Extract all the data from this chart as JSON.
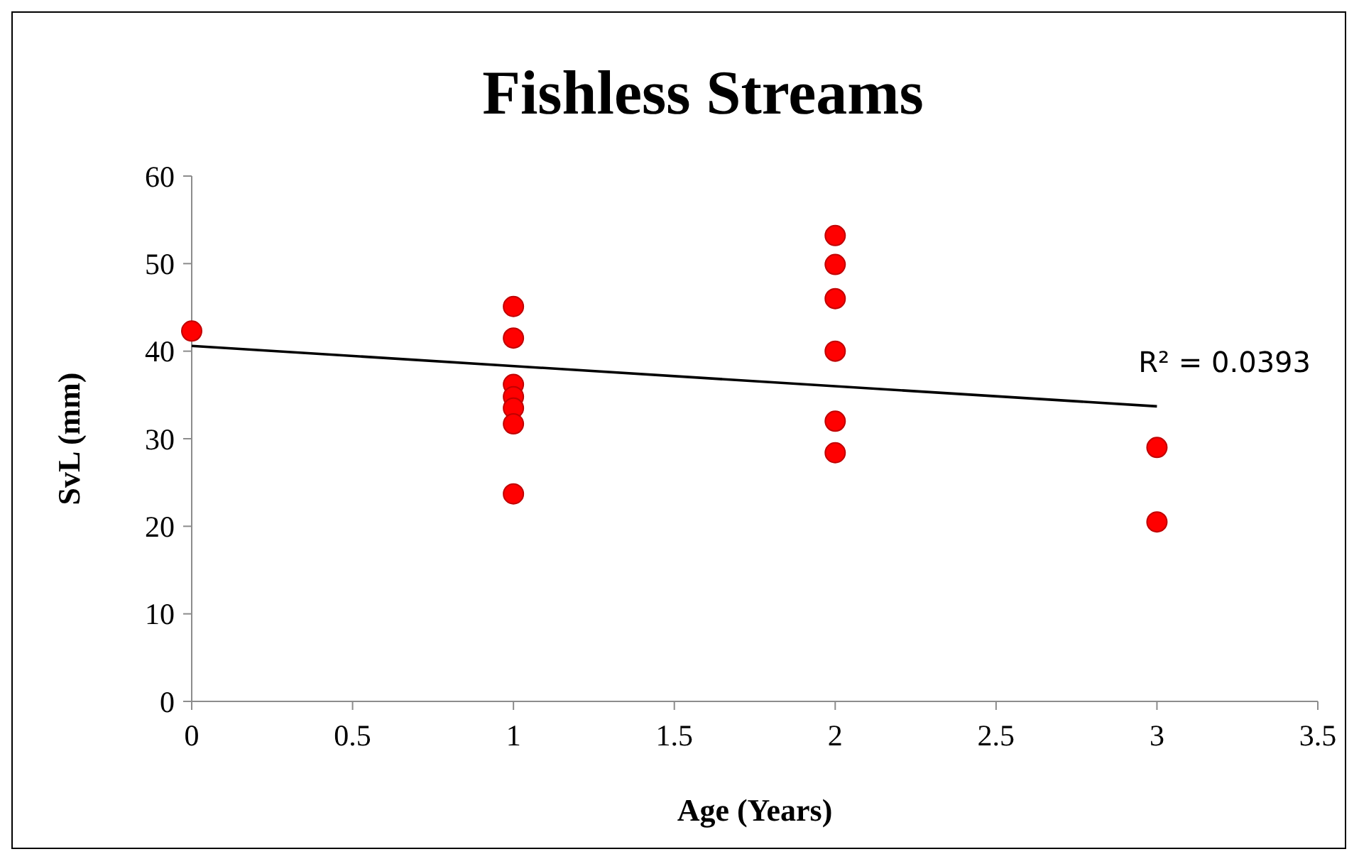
{
  "chart_data": {
    "type": "scatter",
    "title": "Fishless Streams",
    "xlabel": "Age (Years)",
    "ylabel": "SvL (mm)",
    "xlim": [
      0,
      3.5
    ],
    "xticks": [
      0,
      0.5,
      1,
      1.5,
      2,
      2.5,
      3,
      3.5
    ],
    "ylim": [
      0,
      60
    ],
    "yticks": [
      0,
      10,
      20,
      30,
      40,
      50,
      60
    ],
    "grid": false,
    "series": [
      {
        "marker": "circle",
        "color": "#ff0000",
        "x": [
          0,
          1,
          1,
          1,
          1,
          1,
          1,
          1,
          2,
          2,
          2,
          2,
          2,
          2,
          3,
          3
        ],
        "values": [
          42.3,
          45.1,
          41.5,
          36.2,
          34.8,
          33.5,
          31.7,
          23.7,
          53.2,
          49.9,
          46.0,
          40.0,
          32.0,
          28.4,
          29.0,
          20.5
        ]
      },
      {
        "type": "line",
        "color": "#000000",
        "x": [
          0,
          3
        ],
        "values": [
          40.6,
          33.7
        ],
        "line_style": "solid",
        "marker": "none"
      }
    ],
    "annotations": [
      "R² = 0.0393"
    ]
  }
}
